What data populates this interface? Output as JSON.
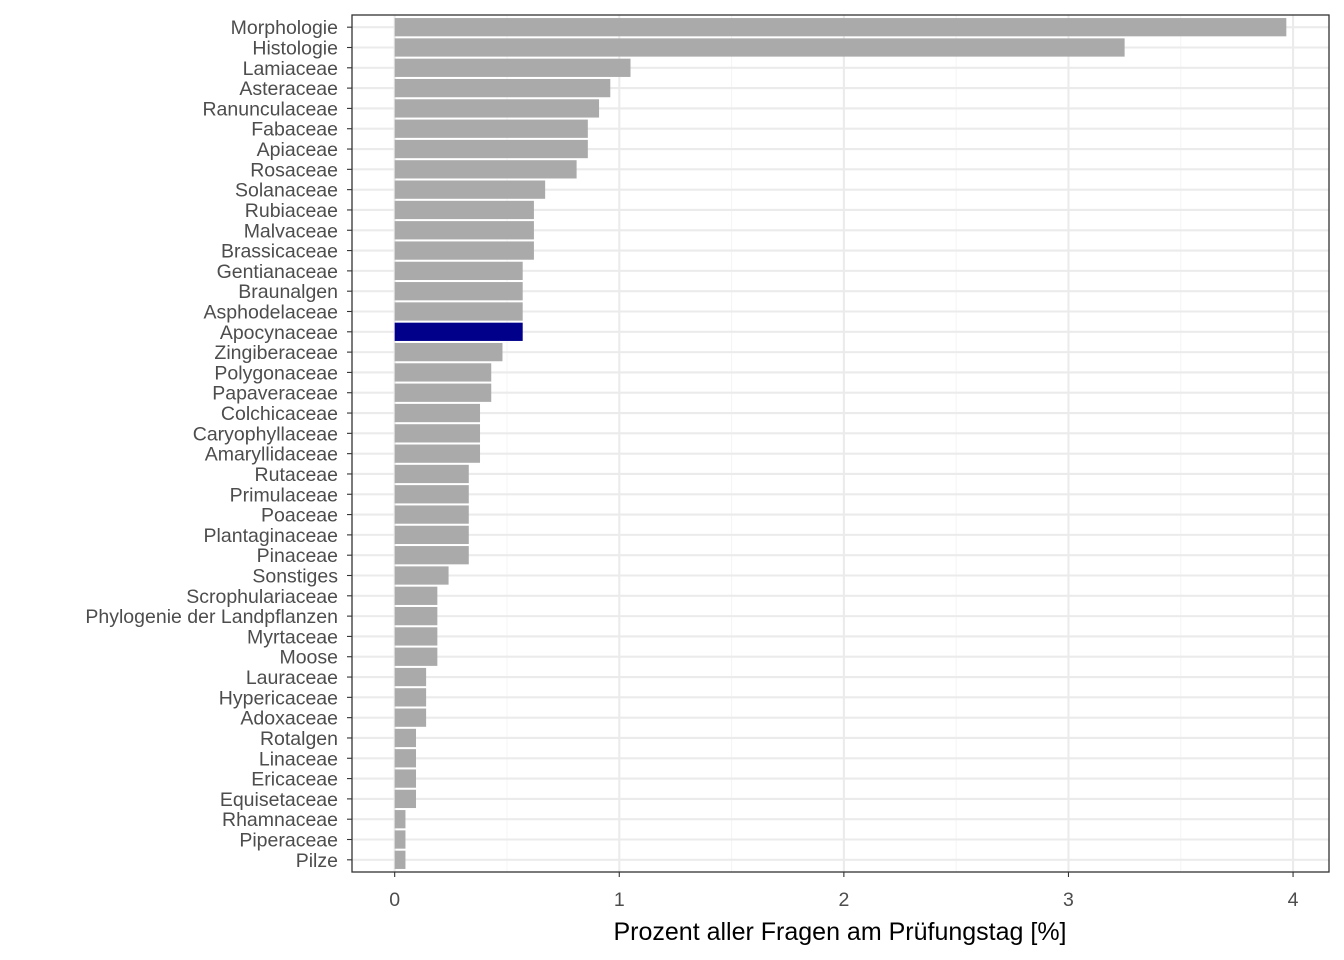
{
  "chart_data": {
    "type": "bar",
    "orientation": "horizontal",
    "title": "",
    "xlabel": "Prozent aller Fragen am Prüfungstag [%]",
    "ylabel": "",
    "xlim": [
      -0.19,
      4.16
    ],
    "xticks": [
      0,
      1,
      2,
      3,
      4
    ],
    "grid": true,
    "colors": {
      "default": "#aaaaaa",
      "highlight": "#00008b",
      "grid_major": "#ebebeb",
      "grid_minor": "#f5f5f5",
      "border": "#333333"
    },
    "highlight": "Apocynaceae",
    "categories": [
      "Morphologie",
      "Histologie",
      "Lamiaceae",
      "Asteraceae",
      "Ranunculaceae",
      "Fabaceae",
      "Apiaceae",
      "Rosaceae",
      "Solanaceae",
      "Rubiaceae",
      "Malvaceae",
      "Brassicaceae",
      "Gentianaceae",
      "Braunalgen",
      "Asphodelaceae",
      "Apocynaceae",
      "Zingiberaceae",
      "Polygonaceae",
      "Papaveraceae",
      "Colchicaceae",
      "Caryophyllaceae",
      "Amaryllidaceae",
      "Rutaceae",
      "Primulaceae",
      "Poaceae",
      "Plantaginaceae",
      "Pinaceae",
      "Sonstiges",
      "Scrophulariaceae",
      "Phylogenie der Landpflanzen",
      "Myrtaceae",
      "Moose",
      "Lauraceae",
      "Hypericaceae",
      "Adoxaceae",
      "Rotalgen",
      "Linaceae",
      "Ericaceae",
      "Equisetaceae",
      "Rhamnaceae",
      "Piperaceae",
      "Pilze"
    ],
    "values": [
      3.97,
      3.25,
      1.05,
      0.96,
      0.91,
      0.86,
      0.86,
      0.81,
      0.67,
      0.62,
      0.62,
      0.62,
      0.57,
      0.57,
      0.57,
      0.57,
      0.48,
      0.43,
      0.43,
      0.38,
      0.38,
      0.38,
      0.33,
      0.33,
      0.33,
      0.33,
      0.33,
      0.24,
      0.19,
      0.19,
      0.19,
      0.19,
      0.14,
      0.14,
      0.14,
      0.095,
      0.095,
      0.095,
      0.095,
      0.048,
      0.048,
      0.048
    ]
  }
}
